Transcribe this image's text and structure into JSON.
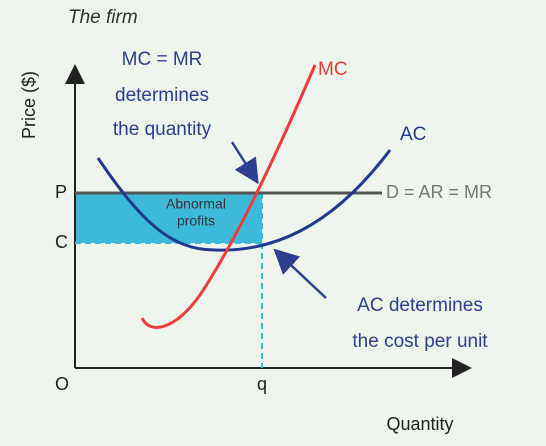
{
  "title": "The firm",
  "axes": {
    "y_label": "Price ($)",
    "x_label": "Quantity",
    "origin": "O",
    "p": "P",
    "c": "C",
    "q": "q"
  },
  "curves": {
    "mc": "MC",
    "ac": "AC",
    "demand": "D = AR = MR"
  },
  "region": {
    "lines": [
      "Abnormal",
      "profits"
    ]
  },
  "annotations": [
    {
      "lines": [
        "MC = MR",
        "determines",
        "the quantity"
      ]
    },
    {
      "lines": [
        "AC determines",
        "the cost per unit"
      ]
    }
  ]
}
